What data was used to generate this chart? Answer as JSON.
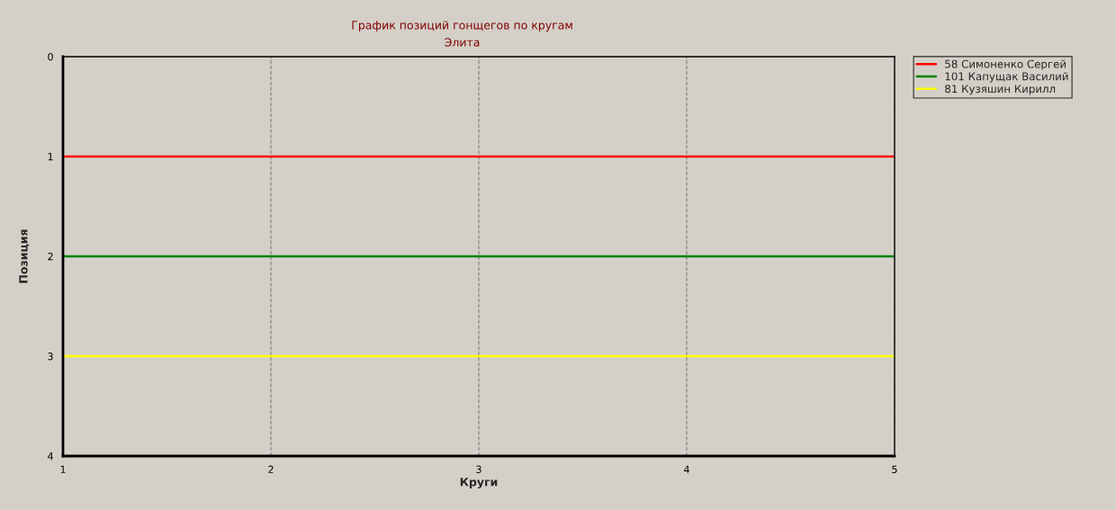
{
  "chart_data": {
    "type": "line",
    "title": "График позиций гонщегов по кругам",
    "subtitle": "Элита",
    "xlabel": "Круги",
    "ylabel": "Позиция",
    "categories": [
      "1",
      "2",
      "3",
      "4",
      "5"
    ],
    "series": [
      {
        "name": "58 Симоненко Сергей",
        "color": "#ff0000",
        "values": [
          1,
          1,
          1,
          1,
          1
        ]
      },
      {
        "name": "101 Капущак Василий",
        "color": "#008000",
        "values": [
          2,
          2,
          2,
          2,
          2
        ]
      },
      {
        "name": "81 Кузяшин Кирилл",
        "color": "#ffff00",
        "values": [
          3,
          3,
          3,
          3,
          3
        ]
      }
    ],
    "ylim": [
      4,
      0
    ],
    "yticks": [
      0,
      1,
      2,
      3,
      4
    ],
    "grid": "x",
    "legend": "top right",
    "marker": "none",
    "line_style": "solid"
  }
}
